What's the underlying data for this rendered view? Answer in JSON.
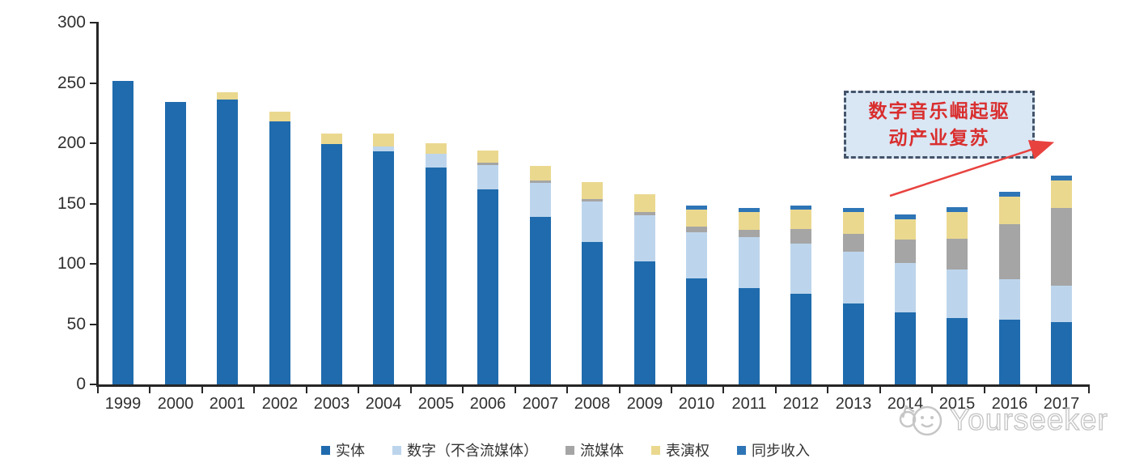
{
  "chart_data": {
    "type": "bar",
    "stacked": true,
    "title": "",
    "xlabel": "",
    "ylabel": "",
    "ylim": [
      0,
      300
    ],
    "yticks": [
      0,
      50,
      100,
      150,
      200,
      250,
      300
    ],
    "grid": false,
    "legend_position": "bottom",
    "categories": [
      "1999",
      "2000",
      "2001",
      "2002",
      "2003",
      "2004",
      "2005",
      "2006",
      "2007",
      "2008",
      "2009",
      "2010",
      "2011",
      "2012",
      "2013",
      "2014",
      "2015",
      "2016",
      "2017"
    ],
    "series": [
      {
        "name": "实体",
        "color": "#1F6BAD",
        "values": [
          252,
          234,
          236,
          218,
          199,
          193,
          180,
          162,
          139,
          118,
          102,
          88,
          80,
          75,
          67,
          60,
          55,
          54,
          52
        ]
      },
      {
        "name": "数字（不含流媒体）",
        "color": "#BDD5EC",
        "values": [
          0,
          0,
          0,
          0,
          0,
          4,
          11,
          20,
          28,
          34,
          38,
          38,
          42,
          42,
          43,
          41,
          40,
          33,
          30
        ]
      },
      {
        "name": "流媒体",
        "color": "#A5A5A5",
        "values": [
          0,
          0,
          0,
          0,
          0,
          0,
          0,
          2,
          2,
          2,
          3,
          5,
          6,
          12,
          15,
          19,
          26,
          46,
          64
        ]
      },
      {
        "name": "表演权",
        "color": "#EAD88F",
        "values": [
          0,
          0,
          6,
          8,
          9,
          11,
          9,
          10,
          12,
          14,
          15,
          14,
          15,
          16,
          18,
          17,
          22,
          23,
          23
        ]
      },
      {
        "name": "同步收入",
        "color": "#2E75B6",
        "values": [
          0,
          0,
          0,
          0,
          0,
          0,
          0,
          0,
          0,
          0,
          0,
          3,
          3,
          3,
          3,
          4,
          4,
          4,
          4
        ]
      }
    ]
  },
  "annotation": {
    "line1": "数字音乐崛起驱",
    "line2": "动产业复苏",
    "fill_color": "#D9E7F5",
    "border_color": "#44546A",
    "text_color": "#D92E2E",
    "arrow_color": "#E8423F"
  },
  "watermark": {
    "brand": "Yourseeker",
    "color": "#C3C3C3"
  }
}
